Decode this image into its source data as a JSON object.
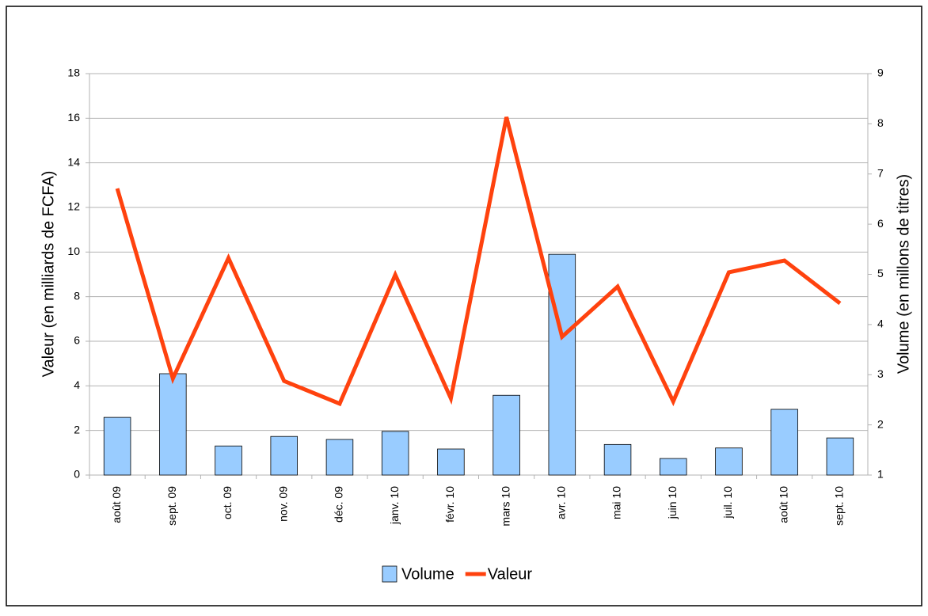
{
  "chart_data": {
    "type": "bar-line",
    "categories": [
      "août 09",
      "sept. 09",
      "oct. 09",
      "nov. 09",
      "déc. 09",
      "janv. 10",
      "févr. 10",
      "mars 10",
      "avr. 10",
      "mai 10",
      "juin 10",
      "juil. 10",
      "août 10",
      "sept. 10"
    ],
    "ylabel": "Valeur (en milliards de FCFA)",
    "y2label": "Volume (en millons de titres)",
    "ylim": [
      0,
      18
    ],
    "yticks": [
      0,
      2,
      4,
      6,
      8,
      10,
      12,
      14,
      16,
      18
    ],
    "y2lim": [
      1,
      9
    ],
    "y2ticks": [
      1,
      2,
      3,
      4,
      5,
      6,
      7,
      8,
      9
    ],
    "grid": true,
    "legend": "bottom",
    "series": [
      {
        "name": "Volume",
        "type": "bar",
        "axis": "y2",
        "color": "#99ccff",
        "values": [
          2.15,
          3.02,
          1.58,
          1.77,
          1.71,
          1.87,
          1.52,
          2.59,
          5.4,
          1.61,
          1.33,
          1.54,
          2.31,
          1.74
        ]
      },
      {
        "name": "Valeur",
        "type": "line",
        "color": "#ff420e",
        "values": [
          12.85,
          4.33,
          9.73,
          4.22,
          3.2,
          8.98,
          3.44,
          16.05,
          6.2,
          8.45,
          3.3,
          9.09,
          9.62,
          7.7
        ]
      }
    ]
  }
}
